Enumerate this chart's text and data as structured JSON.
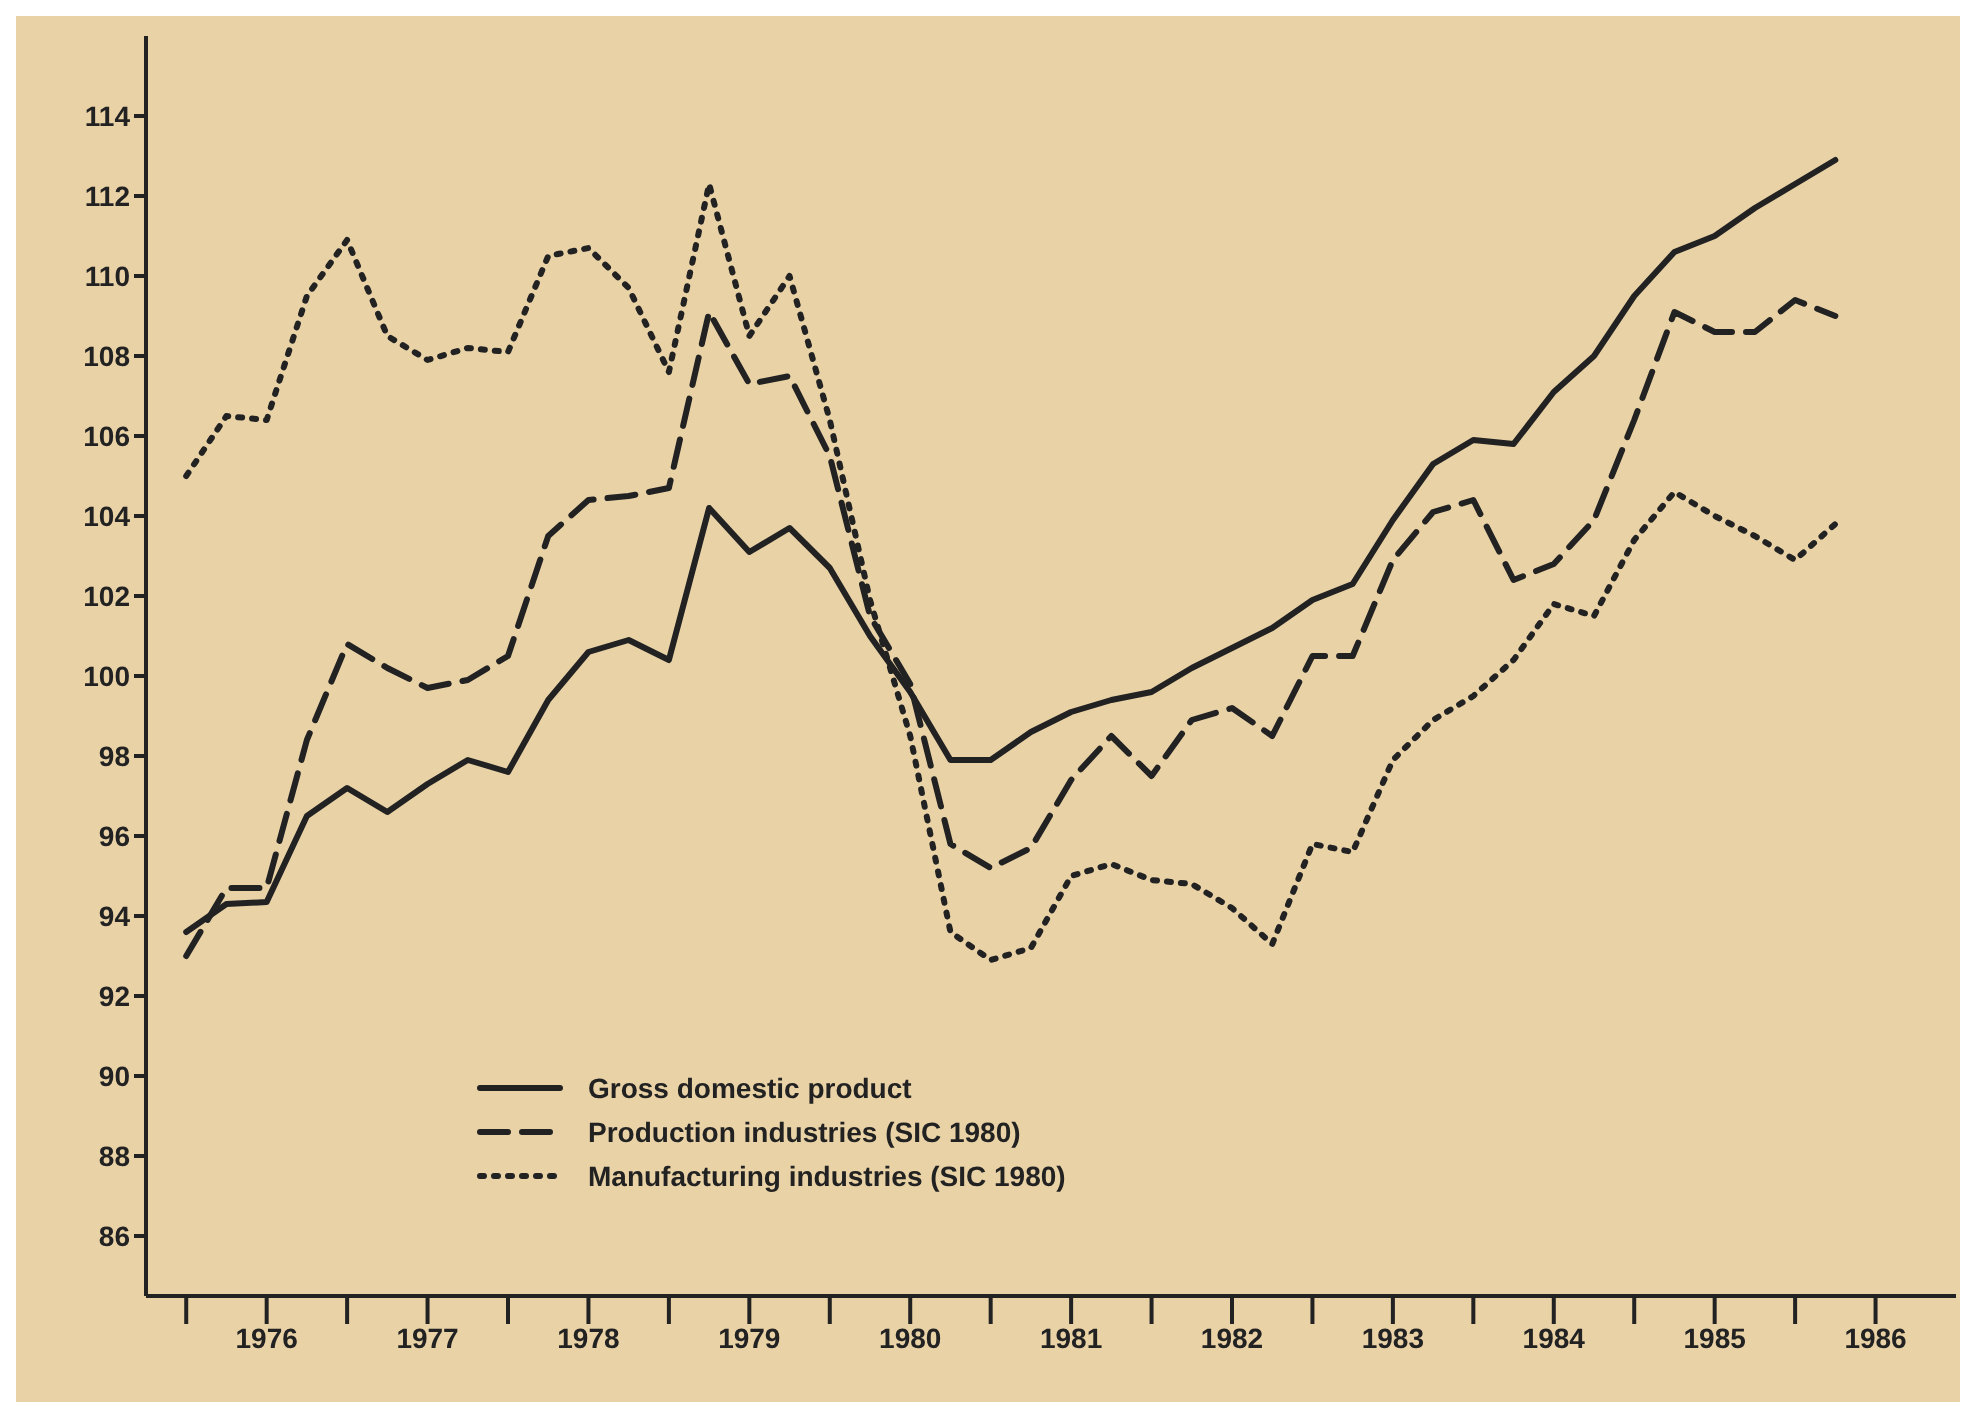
{
  "chart_data": {
    "type": "line",
    "x": [
      1976,
      1976.25,
      1976.5,
      1976.75,
      1977,
      1977.25,
      1977.5,
      1977.75,
      1978,
      1978.25,
      1978.5,
      1978.75,
      1979,
      1979.25,
      1979.5,
      1979.75,
      1980,
      1980.25,
      1980.5,
      1980.75,
      1981,
      1981.25,
      1981.5,
      1981.75,
      1982,
      1982.25,
      1982.5,
      1982.75,
      1983,
      1983.25,
      1983.5,
      1983.75,
      1984,
      1984.25,
      1984.5,
      1984.75,
      1985,
      1985.25,
      1985.5,
      1985.75,
      1986,
      1986.25
    ],
    "series": [
      {
        "name": "Gross domestic product",
        "color": "#222222",
        "line_style": "solid",
        "values": [
          93.6,
          94.3,
          94.35,
          96.5,
          97.2,
          96.6,
          97.3,
          97.9,
          97.6,
          99.4,
          100.6,
          100.9,
          100.4,
          104.2,
          103.1,
          103.7,
          102.7,
          101,
          99.6,
          97.9,
          97.9,
          98.6,
          99.1,
          99.4,
          99.6,
          100.2,
          100.7,
          101.2,
          101.9,
          102.3,
          103.9,
          105.3,
          105.9,
          105.8,
          107.1,
          108,
          109.5,
          110.6,
          111,
          111.7,
          112.3,
          112.9
        ]
      },
      {
        "name": "Production industries (SIC 1980)",
        "color": "#222222",
        "line_style": "dashed",
        "values": [
          93,
          94.7,
          94.7,
          98.4,
          100.8,
          100.2,
          99.7,
          99.9,
          100.5,
          103.5,
          104.4,
          104.5,
          104.7,
          109.1,
          107.3,
          107.5,
          105.5,
          101.5,
          99.8,
          95.8,
          95.2,
          95.7,
          97.4,
          98.5,
          97.5,
          98.9,
          99.2,
          98.5,
          100.5,
          100.5,
          102.9,
          104.1,
          104.4,
          102.4,
          102.8,
          103.9,
          106.4,
          109.1,
          108.6,
          108.6,
          109.4,
          109
        ]
      },
      {
        "name": "Manufacturing industries (SIC 1980)",
        "color": "#222222",
        "line_style": "dotted",
        "values": [
          105,
          106.5,
          106.4,
          109.5,
          110.9,
          108.5,
          107.9,
          108.2,
          108.1,
          110.5,
          110.7,
          109.7,
          107.6,
          112.3,
          108.5,
          110,
          106.4,
          101.9,
          98.5,
          93.6,
          92.9,
          93.2,
          95,
          95.3,
          94.9,
          94.8,
          94.2,
          93.3,
          95.8,
          95.6,
          97.9,
          98.9,
          99.5,
          100.4,
          101.8,
          101.5,
          103.4,
          104.6,
          104,
          103.5,
          102.9,
          103.8
        ]
      }
    ],
    "xlim": [
      1975.75,
      1987
    ],
    "xticks": [
      {
        "value": 1976,
        "label": null
      },
      {
        "value": 1976.5,
        "label": "1976"
      },
      {
        "value": 1977,
        "label": null
      },
      {
        "value": 1977.5,
        "label": "1977"
      },
      {
        "value": 1978,
        "label": null
      },
      {
        "value": 1978.5,
        "label": "1978"
      },
      {
        "value": 1979,
        "label": null
      },
      {
        "value": 1979.5,
        "label": "1979"
      },
      {
        "value": 1980,
        "label": null
      },
      {
        "value": 1980.5,
        "label": "1980"
      },
      {
        "value": 1981,
        "label": null
      },
      {
        "value": 1981.5,
        "label": "1981"
      },
      {
        "value": 1982,
        "label": null
      },
      {
        "value": 1982.5,
        "label": "1982"
      },
      {
        "value": 1983,
        "label": null
      },
      {
        "value": 1983.5,
        "label": "1983"
      },
      {
        "value": 1984,
        "label": null
      },
      {
        "value": 1984.5,
        "label": "1984"
      },
      {
        "value": 1985,
        "label": null
      },
      {
        "value": 1985.5,
        "label": "1985"
      },
      {
        "value": 1986,
        "label": null
      },
      {
        "value": 1986.5,
        "label": "1986"
      }
    ],
    "ylim": [
      84.5,
      116
    ],
    "yticks": [
      86,
      88,
      90,
      92,
      94,
      96,
      98,
      100,
      102,
      104,
      106,
      108,
      110,
      112,
      114
    ],
    "grid": false,
    "legend": "bottom",
    "marker": "none"
  }
}
